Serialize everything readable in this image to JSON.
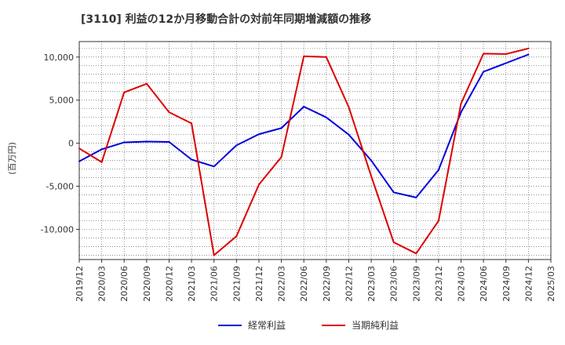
{
  "chart_data": {
    "type": "line",
    "title": "[3110]  利益の12か月移動合計の対前年同期増減額の推移",
    "ylabel": "(百万円)",
    "xlabel": "",
    "ylim": [
      -13500,
      11800
    ],
    "yticks": [
      10000,
      5000,
      0,
      -5000,
      -10000
    ],
    "ytick_labels": [
      "10,000",
      "5,000",
      "0",
      "-5,000",
      "-10,000"
    ],
    "categories": [
      "2019/12",
      "2020/03",
      "2020/06",
      "2020/09",
      "2020/12",
      "2021/03",
      "2021/06",
      "2021/09",
      "2021/12",
      "2022/03",
      "2022/06",
      "2022/09",
      "2022/12",
      "2023/03",
      "2023/06",
      "2023/09",
      "2023/12",
      "2024/03",
      "2024/06",
      "2024/09",
      "2024/12",
      "2025/03"
    ],
    "grid": true,
    "legend_position": "bottom",
    "series": [
      {
        "name": "経常利益",
        "color": "#0000dd",
        "values": [
          -2100,
          -700,
          100,
          200,
          150,
          -1900,
          -2700,
          -250,
          1050,
          1750,
          4250,
          3000,
          1000,
          -2000,
          -5700,
          -6300,
          -3100,
          3600,
          8300,
          9300,
          10300,
          null
        ]
      },
      {
        "name": "当期純利益",
        "color": "#dd0000",
        "values": [
          -600,
          -2200,
          5900,
          6900,
          3600,
          2300,
          -13000,
          -10800,
          -4800,
          -1600,
          10100,
          10000,
          4200,
          -3800,
          -11500,
          -12800,
          -9000,
          4600,
          10400,
          10350,
          11000,
          null
        ]
      }
    ]
  }
}
